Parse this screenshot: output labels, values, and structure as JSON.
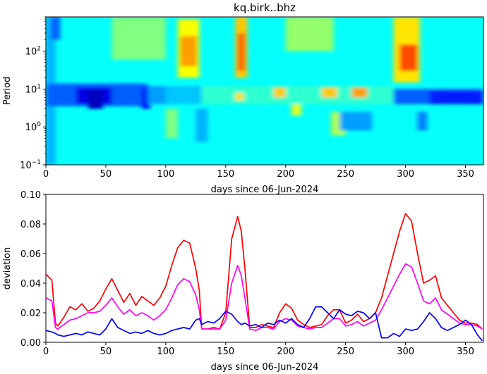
{
  "chart_data": [
    {
      "type": "heatmap",
      "title": "kq.birk..bhz",
      "xlabel": "days since 06-Jun-2024",
      "ylabel": "Period",
      "xlim": [
        0,
        365
      ],
      "ylim": [
        0.1,
        800
      ],
      "yscale": "log",
      "xticks": [
        0,
        50,
        100,
        150,
        200,
        250,
        300,
        350
      ],
      "yticks": [
        {
          "value": 0.1,
          "base": "10",
          "exp": "−1"
        },
        {
          "value": 1,
          "base": "10",
          "exp": "0"
        },
        {
          "value": 10,
          "base": "10",
          "exp": "1"
        },
        {
          "value": 100,
          "base": "10",
          "exp": "2"
        }
      ],
      "colormap": "jet",
      "background_value": 0.38,
      "columns": [
        {
          "x": [
            0,
            8
          ],
          "period": [
            800,
            0.1
          ],
          "v": 0.3
        },
        {
          "x": [
            4,
            12
          ],
          "period": [
            800,
            200
          ],
          "v": 0.22
        },
        {
          "x": [
            0,
            85
          ],
          "period": [
            14,
            3.5
          ],
          "v": 0.22
        },
        {
          "x": [
            25,
            55
          ],
          "period": [
            11,
            4
          ],
          "v": 0.1
        },
        {
          "x": [
            35,
            48
          ],
          "period": [
            9,
            3
          ],
          "v": 0.06
        },
        {
          "x": [
            80,
            87
          ],
          "period": [
            11,
            3
          ],
          "v": 0.12
        },
        {
          "x": [
            85,
            100
          ],
          "period": [
            12,
            4
          ],
          "v": 0.28
        },
        {
          "x": [
            100,
            130
          ],
          "period": [
            12,
            4
          ],
          "v": 0.32
        },
        {
          "x": [
            130,
            290
          ],
          "period": [
            12,
            4
          ],
          "v": 0.42
        },
        {
          "x": [
            290,
            365
          ],
          "period": [
            10,
            4
          ],
          "v": 0.22
        },
        {
          "x": [
            320,
            365
          ],
          "period": [
            9,
            4
          ],
          "v": 0.15
        },
        {
          "x": [
            110,
            128
          ],
          "period": [
            700,
            20
          ],
          "v": 0.62
        },
        {
          "x": [
            112,
            126
          ],
          "period": [
            250,
            40
          ],
          "v": 0.72
        },
        {
          "x": [
            158,
            168
          ],
          "period": [
            800,
            20
          ],
          "v": 0.68
        },
        {
          "x": [
            160,
            166
          ],
          "period": [
            300,
            30
          ],
          "v": 0.78
        },
        {
          "x": [
            290,
            312
          ],
          "period": [
            800,
            15
          ],
          "v": 0.65
        },
        {
          "x": [
            295,
            310
          ],
          "period": [
            150,
            30
          ],
          "v": 0.8
        },
        {
          "x": [
            200,
            240
          ],
          "period": [
            800,
            100
          ],
          "v": 0.52
        },
        {
          "x": [
            55,
            100
          ],
          "period": [
            800,
            60
          ],
          "v": 0.5
        },
        {
          "x": [
            190,
            200
          ],
          "period": [
            11,
            6
          ],
          "v": 0.68
        },
        {
          "x": [
            230,
            243
          ],
          "period": [
            11,
            6
          ],
          "v": 0.68
        },
        {
          "x": [
            255,
            268
          ],
          "period": [
            11,
            6
          ],
          "v": 0.72
        },
        {
          "x": [
            158,
            165
          ],
          "period": [
            8,
            5
          ],
          "v": 0.66
        },
        {
          "x": [
            205,
            213
          ],
          "period": [
            4,
            2
          ],
          "v": 0.6
        },
        {
          "x": [
            238,
            250
          ],
          "period": [
            2.5,
            0.6
          ],
          "v": 0.55
        },
        {
          "x": [
            245,
            272
          ],
          "period": [
            2.5,
            0.8
          ],
          "v": 0.28
        },
        {
          "x": [
            310,
            318
          ],
          "period": [
            2.5,
            0.8
          ],
          "v": 0.25
        },
        {
          "x": [
            125,
            135
          ],
          "period": [
            3,
            0.4
          ],
          "v": 0.3
        },
        {
          "x": [
            100,
            110
          ],
          "period": [
            3,
            0.5
          ],
          "v": 0.5
        }
      ]
    },
    {
      "type": "line",
      "xlabel": "days since 06-Jun-2024",
      "ylabel": "deviation",
      "xlim": [
        0,
        365
      ],
      "ylim": [
        0,
        0.1
      ],
      "xticks": [
        0,
        50,
        100,
        150,
        200,
        250,
        300,
        350
      ],
      "yticks": [
        "0.00",
        "0.02",
        "0.04",
        "0.06",
        "0.08",
        "0.10"
      ],
      "series": [
        {
          "color": "#ff0000",
          "x": [
            0,
            5,
            8,
            10,
            15,
            20,
            25,
            30,
            35,
            40,
            45,
            50,
            55,
            60,
            65,
            70,
            75,
            80,
            85,
            90,
            95,
            100,
            105,
            110,
            115,
            120,
            125,
            128,
            130,
            135,
            140,
            145,
            150,
            155,
            160,
            163,
            166,
            170,
            175,
            180,
            185,
            190,
            195,
            200,
            205,
            210,
            215,
            220,
            225,
            230,
            235,
            240,
            245,
            250,
            255,
            260,
            265,
            270,
            275,
            280,
            285,
            290,
            295,
            300,
            305,
            310,
            315,
            320,
            325,
            330,
            335,
            340,
            345,
            350,
            355,
            360,
            364
          ],
          "y": [
            0.046,
            0.042,
            0.013,
            0.011,
            0.017,
            0.024,
            0.022,
            0.026,
            0.021,
            0.023,
            0.028,
            0.036,
            0.043,
            0.035,
            0.027,
            0.033,
            0.025,
            0.031,
            0.028,
            0.025,
            0.03,
            0.038,
            0.052,
            0.064,
            0.069,
            0.067,
            0.05,
            0.035,
            0.009,
            0.009,
            0.01,
            0.009,
            0.02,
            0.07,
            0.085,
            0.075,
            0.05,
            0.01,
            0.01,
            0.012,
            0.011,
            0.01,
            0.02,
            0.026,
            0.023,
            0.015,
            0.012,
            0.01,
            0.011,
            0.012,
            0.018,
            0.022,
            0.022,
            0.013,
            0.015,
            0.019,
            0.014,
            0.016,
            0.02,
            0.03,
            0.045,
            0.06,
            0.075,
            0.087,
            0.082,
            0.06,
            0.04,
            0.042,
            0.045,
            0.03,
            0.025,
            0.02,
            0.015,
            0.013,
            0.013,
            0.012,
            0.009
          ]
        },
        {
          "color": "#ff00ff",
          "x": [
            0,
            5,
            8,
            10,
            15,
            20,
            25,
            30,
            35,
            40,
            45,
            50,
            55,
            60,
            65,
            70,
            75,
            80,
            85,
            90,
            95,
            100,
            105,
            110,
            115,
            120,
            125,
            128,
            130,
            135,
            140,
            145,
            150,
            155,
            160,
            163,
            166,
            170,
            175,
            180,
            185,
            190,
            195,
            200,
            205,
            210,
            215,
            220,
            225,
            230,
            235,
            240,
            245,
            250,
            255,
            260,
            265,
            270,
            275,
            280,
            285,
            290,
            295,
            300,
            305,
            310,
            315,
            320,
            325,
            330,
            335,
            340,
            345,
            350,
            355,
            360,
            364
          ],
          "y": [
            0.03,
            0.028,
            0.01,
            0.009,
            0.012,
            0.015,
            0.016,
            0.018,
            0.02,
            0.02,
            0.021,
            0.025,
            0.03,
            0.024,
            0.019,
            0.022,
            0.018,
            0.02,
            0.018,
            0.015,
            0.018,
            0.022,
            0.03,
            0.039,
            0.043,
            0.041,
            0.032,
            0.022,
            0.009,
            0.009,
            0.009,
            0.009,
            0.015,
            0.04,
            0.052,
            0.045,
            0.03,
            0.009,
            0.008,
            0.01,
            0.01,
            0.009,
            0.014,
            0.016,
            0.015,
            0.011,
            0.01,
            0.009,
            0.01,
            0.01,
            0.013,
            0.016,
            0.016,
            0.011,
            0.012,
            0.014,
            0.011,
            0.013,
            0.015,
            0.022,
            0.03,
            0.038,
            0.046,
            0.053,
            0.051,
            0.04,
            0.028,
            0.026,
            0.03,
            0.022,
            0.019,
            0.016,
            0.013,
            0.012,
            0.012,
            0.011,
            0.009
          ]
        },
        {
          "color": "#0000ff",
          "x": [
            0,
            5,
            8,
            10,
            15,
            20,
            25,
            30,
            35,
            40,
            45,
            50,
            55,
            60,
            65,
            70,
            75,
            80,
            85,
            90,
            95,
            100,
            105,
            110,
            115,
            120,
            125,
            128,
            130,
            135,
            140,
            145,
            150,
            155,
            160,
            163,
            166,
            170,
            175,
            180,
            185,
            190,
            195,
            200,
            205,
            210,
            215,
            220,
            225,
            230,
            235,
            240,
            245,
            250,
            255,
            260,
            265,
            270,
            275,
            280,
            285,
            290,
            295,
            300,
            305,
            310,
            315,
            320,
            325,
            330,
            335,
            340,
            345,
            350,
            355,
            360,
            364
          ],
          "y": [
            0.008,
            0.007,
            0.006,
            0.005,
            0.004,
            0.005,
            0.006,
            0.005,
            0.007,
            0.006,
            0.005,
            0.009,
            0.016,
            0.01,
            0.008,
            0.006,
            0.007,
            0.006,
            0.008,
            0.006,
            0.005,
            0.006,
            0.008,
            0.009,
            0.01,
            0.009,
            0.015,
            0.016,
            0.012,
            0.014,
            0.013,
            0.016,
            0.021,
            0.019,
            0.014,
            0.012,
            0.013,
            0.011,
            0.012,
            0.01,
            0.013,
            0.012,
            0.015,
            0.013,
            0.016,
            0.012,
            0.01,
            0.016,
            0.024,
            0.024,
            0.02,
            0.016,
            0.022,
            0.019,
            0.018,
            0.021,
            0.02,
            0.016,
            0.02,
            0.003,
            0.003,
            0.006,
            0.004,
            0.009,
            0.008,
            0.009,
            0.014,
            0.02,
            0.016,
            0.01,
            0.008,
            0.01,
            0.012,
            0.015,
            0.012,
            0.005,
            0.001
          ]
        }
      ]
    }
  ]
}
